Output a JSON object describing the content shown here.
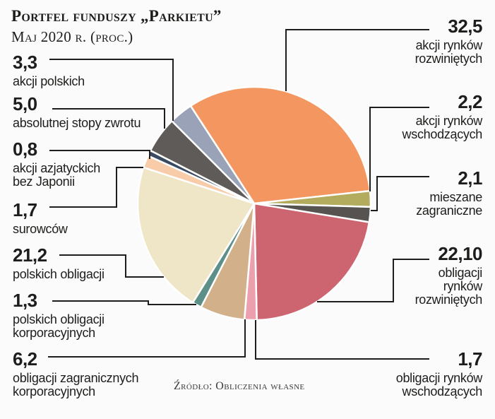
{
  "title": "Portfel funduszy „Parkietu”",
  "subtitle": "Maj 2020 r. (proc.)",
  "source": "Źródło: Obliczenia własne",
  "chart_data": {
    "type": "pie",
    "title": "Portfel funduszy „Parkietu”",
    "subtitle": "Maj 2020 r. (proc.)",
    "unit": "proc.",
    "start_angle_deg": -33.1,
    "clockwise": true,
    "slice_gap_color": "#ffffff",
    "slices": [
      {
        "key": "akcje-rynkow-rozwinietych",
        "value": 32.5,
        "value_label": "32,5",
        "label": "akcji rynków\nrozwiniętych",
        "color": "#f4965f",
        "side": "right"
      },
      {
        "key": "akcje-rynkow-wschodzacych",
        "value": 2.2,
        "value_label": "2,2",
        "label": "akcji rynków\nwschodzących",
        "color": "#b3ab5e",
        "side": "right"
      },
      {
        "key": "mieszane-zagraniczne",
        "value": 2.1,
        "value_label": "2,1",
        "label": "mieszane\nzagraniczne",
        "color": "#565350",
        "side": "right"
      },
      {
        "key": "obligacje-rynkow-rozwinietych",
        "value": 22.1,
        "value_label": "22,10",
        "label": "obligacji\nrynków\nrozwiniętych",
        "color": "#cd6570",
        "side": "right"
      },
      {
        "key": "obligacje-rynkow-wschodzacych",
        "value": 1.7,
        "value_label": "1,7",
        "label": "obligacji rynków\nwschodzących",
        "color": "#ec9fac",
        "side": "right"
      },
      {
        "key": "obligacje-zagraniczne-korporacyjne",
        "value": 6.2,
        "value_label": "6,2",
        "label": "obligacji zagranicznych\nkorporacyjnych",
        "color": "#d2b18a",
        "side": "left"
      },
      {
        "key": "polskie-obligacje-korporacyjne",
        "value": 1.3,
        "value_label": "1,3",
        "label": "polskich obligacji\nkorporacyjnych",
        "color": "#5c8f87",
        "side": "left"
      },
      {
        "key": "polskie-obligacje",
        "value": 21.2,
        "value_label": "21,2",
        "label": "polskich obligacji",
        "color": "#eee6c6",
        "side": "left"
      },
      {
        "key": "surowce",
        "value": 1.7,
        "value_label": "1,7",
        "label": "surowców",
        "color": "#f9cca9",
        "side": "left"
      },
      {
        "key": "akcje-azjatyckie-bez-japonii",
        "value": 0.8,
        "value_label": "0,8",
        "label": "akcji azjatyckich\nbez Japonii",
        "color": "#3a4b61",
        "side": "left"
      },
      {
        "key": "absolutna-stopa-zwrotu",
        "value": 5.0,
        "value_label": "5,0",
        "label": "absolutnej stopy zwrotu",
        "color": "#5e5b58",
        "side": "left"
      },
      {
        "key": "akcje-polskie",
        "value": 3.3,
        "value_label": "3,3",
        "label": "akcji polskich",
        "color": "#99a2b7",
        "side": "left"
      }
    ]
  }
}
